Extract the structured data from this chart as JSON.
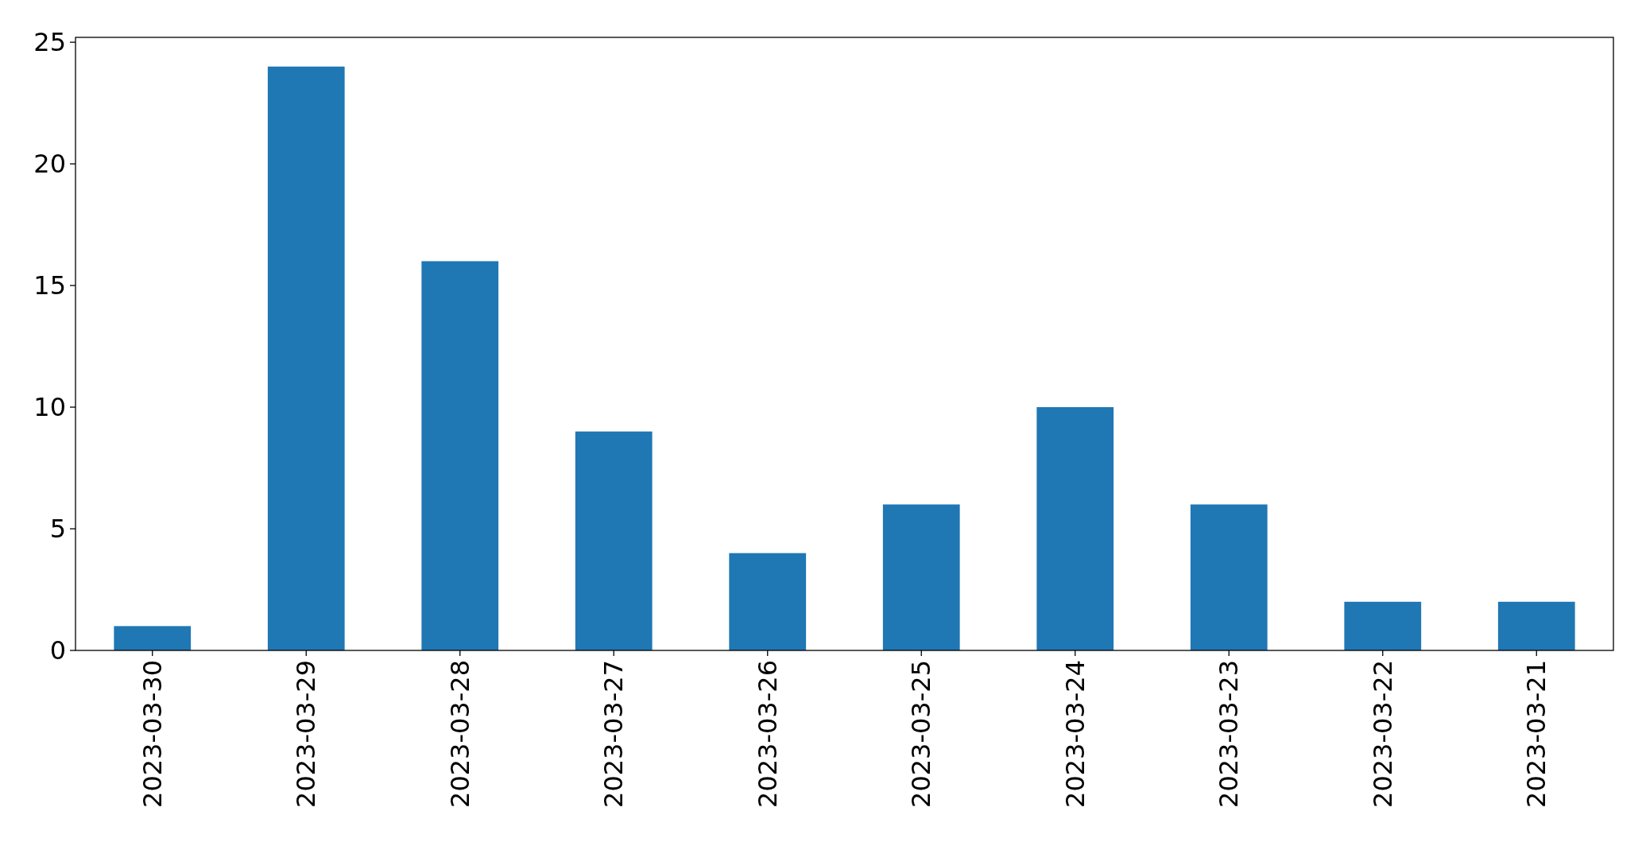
{
  "chart_data": {
    "type": "bar",
    "categories": [
      "2023-03-30",
      "2023-03-29",
      "2023-03-28",
      "2023-03-27",
      "2023-03-26",
      "2023-03-25",
      "2023-03-24",
      "2023-03-23",
      "2023-03-22",
      "2023-03-21"
    ],
    "values": [
      1,
      24,
      16,
      9,
      4,
      6,
      10,
      6,
      2,
      2
    ],
    "color": "#1f77b4",
    "ylim": [
      0,
      25.2
    ],
    "yticks": [
      0,
      5,
      10,
      15,
      20,
      25
    ],
    "grid": false
  }
}
